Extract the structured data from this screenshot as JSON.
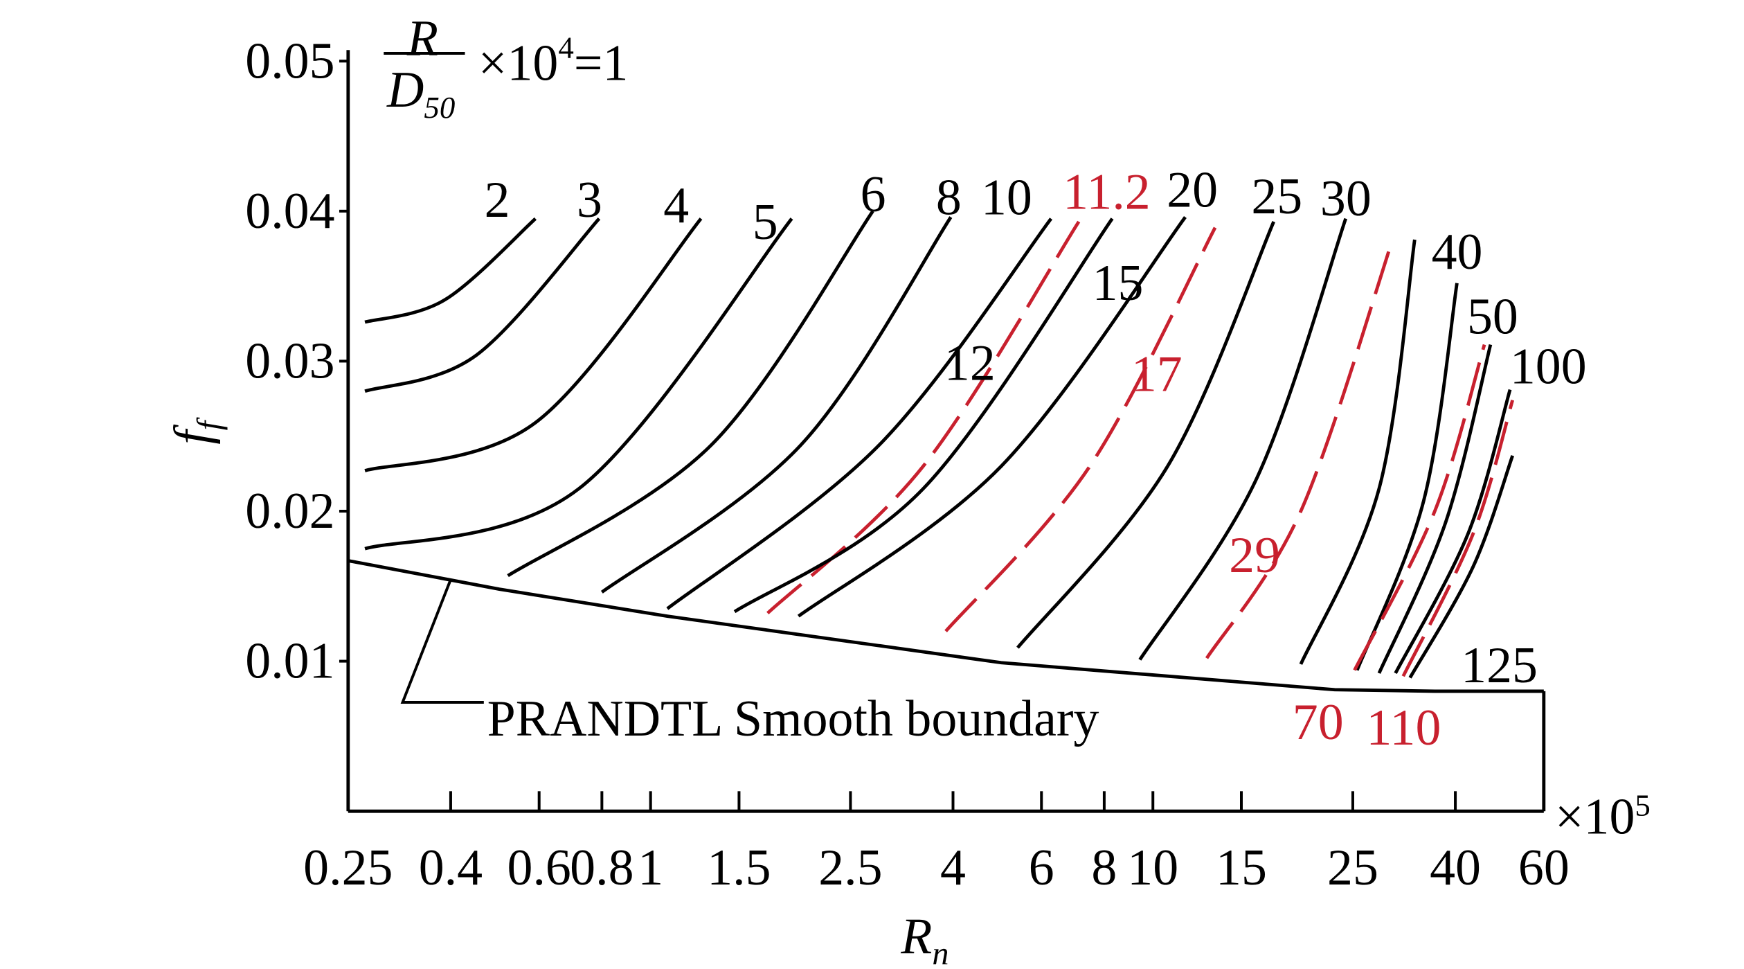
{
  "chart_data": {
    "type": "line",
    "x_scale": "log",
    "xlim": [
      0.25,
      60
    ],
    "xticks": [
      0.25,
      0.4,
      0.6,
      0.8,
      1,
      1.5,
      2.5,
      4,
      6,
      8,
      10,
      15,
      25,
      40,
      60
    ],
    "x_multiplier": {
      "base": "×10",
      "exponent": "5"
    },
    "x_label": {
      "main": "R",
      "sub": "n"
    },
    "ylim": [
      0,
      0.05
    ],
    "yticks": [
      0.01,
      0.02,
      0.03,
      0.04,
      0.05
    ],
    "y_label": {
      "main": "f",
      "sub": "f"
    },
    "annotation": {
      "numerator": "R",
      "denominator": "D",
      "denominator_sub": "50",
      "times": "×10",
      "exponent": "4",
      "equals": "=1"
    },
    "series": [
      {
        "name": "2",
        "color": "#000000",
        "dashed": false,
        "x": [
          0.27,
          0.39,
          0.59
        ],
        "values": [
          0.0326,
          0.0341,
          0.0395
        ]
      },
      {
        "name": "3",
        "color": "#000000",
        "dashed": false,
        "x": [
          0.27,
          0.45,
          0.79
        ],
        "values": [
          0.028,
          0.0304,
          0.0395
        ]
      },
      {
        "name": "4",
        "color": "#000000",
        "dashed": false,
        "x": [
          0.27,
          0.59,
          1.26
        ],
        "values": [
          0.0227,
          0.0259,
          0.0395
        ]
      },
      {
        "name": "5",
        "color": "#000000",
        "dashed": false,
        "x": [
          0.27,
          0.72,
          1.91
        ],
        "values": [
          0.0175,
          0.0215,
          0.0395
        ]
      },
      {
        "name": "6",
        "color": "#000000",
        "dashed": false,
        "x": [
          0.52,
          1.32,
          2.77
        ],
        "values": [
          0.0157,
          0.0244,
          0.04
        ]
      },
      {
        "name": "8",
        "color": "#000000",
        "dashed": false,
        "x": [
          0.8,
          1.99,
          3.96
        ],
        "values": [
          0.0146,
          0.0244,
          0.0396
        ]
      },
      {
        "name": "10",
        "color": "#000000",
        "dashed": false,
        "x": [
          1.08,
          2.85,
          6.27
        ],
        "values": [
          0.0135,
          0.0244,
          0.0395
        ]
      },
      {
        "name": "11.2",
        "color": "#c8202e",
        "dashed": true,
        "x": [
          1.71,
          3.49,
          7.12
        ],
        "values": [
          0.0132,
          0.023,
          0.0393
        ]
      },
      {
        "name": "12",
        "color": "#000000",
        "dashed": false,
        "x": [
          1.47,
          3.49,
          8.3
        ],
        "values": [
          0.0133,
          0.0215,
          0.0395
        ]
      },
      {
        "name": "15",
        "color": "#000000",
        "dashed": false,
        "x": [
          1.97,
          4.99,
          11.6
        ],
        "values": [
          0.013,
          0.023,
          0.0396
        ]
      },
      {
        "name": "17",
        "color": "#c8202e",
        "dashed": true,
        "x": [
          3.87,
          7.49,
          13.3
        ],
        "values": [
          0.012,
          0.023,
          0.0389
        ]
      },
      {
        "name": "20",
        "color": "#000000",
        "dashed": false,
        "x": [
          5.38,
          10.7,
          17.4
        ],
        "values": [
          0.0109,
          0.023,
          0.0393
        ]
      },
      {
        "name": "25",
        "color": "#000000",
        "dashed": false,
        "x": [
          9.42,
          16.1,
          24.2
        ],
        "values": [
          0.0101,
          0.0222,
          0.0395
        ]
      },
      {
        "name": "29",
        "color": "#c8202e",
        "dashed": true,
        "x": [
          12.8,
          19.7,
          30.0
        ],
        "values": [
          0.0102,
          0.02,
          0.0381
        ]
      },
      {
        "name": "30",
        "color": "#000000",
        "dashed": false,
        "x": [
          19.7,
          28.2,
          33.2
        ],
        "values": [
          0.0098,
          0.0215,
          0.0381
        ]
      },
      {
        "name": "40",
        "color": "#000000",
        "dashed": false,
        "x": [
          25.5,
          34.6,
          40.3
        ],
        "values": [
          0.0094,
          0.0207,
          0.0352
        ]
      },
      {
        "name": "50",
        "color": "#000000",
        "dashed": false,
        "x": [
          28.2,
          38.3,
          47.0
        ],
        "values": [
          0.0092,
          0.0193,
          0.0311
        ]
      },
      {
        "name": "70",
        "color": "#c8202e",
        "dashed": true,
        "x": [
          25.2,
          36.4,
          45.7
        ],
        "values": [
          0.0094,
          0.02,
          0.0311
        ]
      },
      {
        "name": "100",
        "color": "#000000",
        "dashed": false,
        "x": [
          30.4,
          42.4,
          51.4
        ],
        "values": [
          0.0092,
          0.0185,
          0.0281
        ]
      },
      {
        "name": "110",
        "color": "#c8202e",
        "dashed": true,
        "x": [
          31.5,
          43.4,
          52.0
        ],
        "values": [
          0.009,
          0.0185,
          0.0274
        ]
      },
      {
        "name": "125",
        "color": "#000000",
        "dashed": false,
        "x": [
          32.5,
          43.4,
          52.0
        ],
        "values": [
          0.0089,
          0.0163,
          0.0237
        ]
      },
      {
        "name": "PRANDTL Smooth boundary",
        "color": "#000000",
        "dashed": false,
        "x": [
          0.25,
          0.5,
          1.08,
          4.99,
          23.0,
          36.4,
          60
        ],
        "values": [
          0.0167,
          0.0148,
          0.013,
          0.0099,
          0.0081,
          0.008,
          0.008
        ]
      }
    ]
  }
}
